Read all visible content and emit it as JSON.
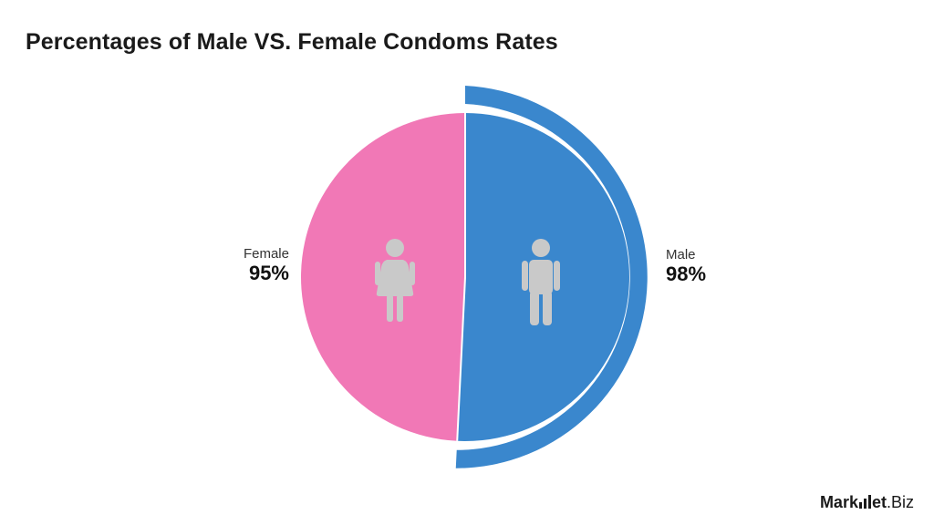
{
  "title": "Percentages of Male VS. Female Condoms Rates",
  "chart_data": {
    "type": "pie",
    "title": "Percentages of Male VS. Female Condoms Rates",
    "slices": [
      {
        "name": "Female",
        "label": "95%",
        "value": 95,
        "color": "#f178b6"
      },
      {
        "name": "Male",
        "label": "98%",
        "value": 98,
        "color": "#3a87cd"
      }
    ],
    "icons": [
      "female-person-icon",
      "male-person-icon"
    ]
  },
  "brand": {
    "part1": "Mark",
    "part2": "et",
    "part3": ".Biz"
  }
}
